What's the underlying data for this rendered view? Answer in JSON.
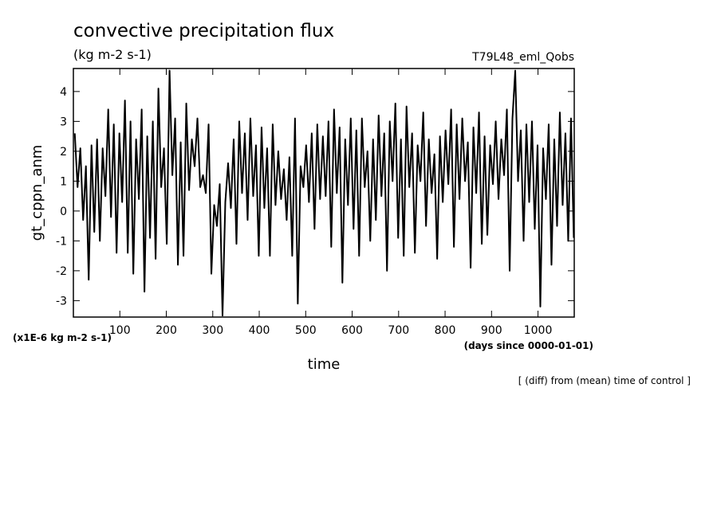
{
  "chart_data": {
    "type": "line",
    "title": "convective precipitation flux",
    "subtitle": "(kg m-2 s-1)",
    "run_label": "T79L48_eml_Qobs",
    "ylabel": "gt_cppn_anm",
    "yunit": "(x1E-6 kg m-2 s-1)",
    "xlabel": "time",
    "xunit": "(days since 0000-01-01)",
    "annotation": "[ (diff) from (mean) time of control ]",
    "color": "#000000",
    "xlim": [
      0,
      1078
    ],
    "ylim": [
      -3.55,
      4.77
    ],
    "xticks": [
      100,
      200,
      300,
      400,
      500,
      600,
      700,
      800,
      900,
      1000
    ],
    "yticks": [
      -3,
      -2,
      -1,
      0,
      1,
      2,
      3,
      4
    ],
    "x": [
      3,
      9,
      15,
      21,
      27,
      33,
      39,
      45,
      51,
      57,
      63,
      69,
      75,
      81,
      87,
      93,
      99,
      105,
      111,
      117,
      123,
      129,
      135,
      141,
      147,
      153,
      159,
      165,
      171,
      177,
      183,
      189,
      195,
      201,
      207,
      213,
      219,
      225,
      231,
      237,
      243,
      249,
      255,
      261,
      267,
      273,
      279,
      285,
      291,
      297,
      303,
      309,
      315,
      321,
      327,
      333,
      339,
      345,
      351,
      357,
      363,
      369,
      375,
      381,
      387,
      393,
      399,
      405,
      411,
      417,
      423,
      429,
      435,
      441,
      447,
      453,
      459,
      465,
      471,
      477,
      483,
      489,
      495,
      501,
      507,
      513,
      519,
      525,
      531,
      537,
      543,
      549,
      555,
      561,
      567,
      573,
      579,
      585,
      591,
      597,
      603,
      609,
      615,
      621,
      627,
      633,
      639,
      645,
      651,
      657,
      663,
      669,
      675,
      681,
      687,
      693,
      699,
      705,
      711,
      717,
      723,
      729,
      735,
      741,
      747,
      753,
      759,
      765,
      771,
      777,
      783,
      789,
      795,
      801,
      807,
      813,
      819,
      825,
      831,
      837,
      843,
      849,
      855,
      861,
      867,
      873,
      879,
      885,
      891,
      897,
      903,
      909,
      915,
      921,
      927,
      933,
      939,
      945,
      951,
      957,
      963,
      969,
      975,
      981,
      987,
      993,
      999,
      1005,
      1011,
      1017,
      1023,
      1029,
      1035,
      1041,
      1047,
      1053,
      1059,
      1065,
      1071,
      1077
    ],
    "values": [
      2.6,
      0.8,
      2.1,
      -0.3,
      1.5,
      -2.3,
      2.2,
      -0.7,
      2.4,
      -1.0,
      2.1,
      0.5,
      3.4,
      -0.2,
      2.9,
      -1.4,
      2.6,
      0.3,
      3.7,
      -1.4,
      3.0,
      -2.1,
      2.4,
      0.4,
      3.4,
      -2.7,
      2.5,
      -0.9,
      3.0,
      -1.6,
      4.1,
      0.8,
      2.1,
      -1.1,
      4.7,
      1.2,
      3.1,
      -1.8,
      2.3,
      -1.5,
      3.6,
      0.7,
      2.4,
      1.5,
      3.1,
      0.8,
      1.2,
      0.6,
      2.9,
      -2.1,
      0.2,
      -0.5,
      0.9,
      -3.5,
      0.3,
      1.6,
      0.1,
      2.4,
      -1.1,
      3.0,
      0.6,
      2.6,
      -0.3,
      3.1,
      0.5,
      2.2,
      -1.5,
      2.8,
      0.1,
      2.1,
      -1.5,
      2.9,
      0.2,
      2.0,
      0.4,
      1.4,
      -0.3,
      1.8,
      -1.5,
      3.1,
      -3.1,
      1.5,
      0.8,
      2.2,
      0.3,
      2.6,
      -0.6,
      2.9,
      0.4,
      2.5,
      0.5,
      3.0,
      -1.2,
      3.4,
      0.6,
      2.8,
      -2.4,
      2.4,
      0.2,
      3.1,
      -0.6,
      2.7,
      -1.5,
      3.1,
      0.8,
      2.0,
      -1.0,
      2.4,
      -0.3,
      3.2,
      0.5,
      2.6,
      -2.0,
      3.0,
      1.0,
      3.6,
      -0.9,
      2.4,
      -1.5,
      3.5,
      0.8,
      2.6,
      -1.4,
      2.2,
      1.0,
      3.3,
      -0.5,
      2.4,
      0.6,
      1.9,
      -1.6,
      2.5,
      0.3,
      2.7,
      0.9,
      3.4,
      -1.2,
      2.9,
      0.4,
      3.1,
      1.0,
      2.3,
      -1.9,
      2.8,
      0.6,
      3.3,
      -1.1,
      2.5,
      -0.8,
      2.2,
      0.9,
      3.0,
      0.4,
      2.4,
      1.2,
      3.4,
      -2.0,
      3.1,
      4.7,
      1.0,
      2.7,
      -1.0,
      2.9,
      0.3,
      3.0,
      -0.6,
      2.2,
      -3.2,
      2.1,
      0.4,
      2.9,
      -1.8,
      2.4,
      -0.5,
      3.3,
      0.2,
      2.6,
      -1.0,
      3.1,
      -0.9
    ]
  }
}
